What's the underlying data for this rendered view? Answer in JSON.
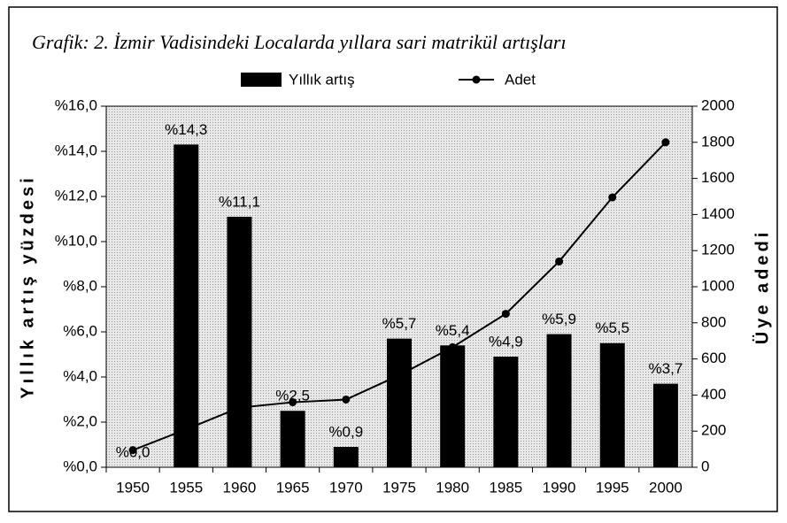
{
  "chart_data": {
    "type": "bar_line",
    "title": "Grafik: 2. İzmir Vadisindeki Localarda yıllara sari matrikül artışları",
    "ylabel": "Yıllık artış yüzdesi",
    "y2label": "Üye adedi",
    "categories": [
      "1950",
      "1955",
      "1960",
      "1965",
      "1970",
      "1975",
      "1980",
      "1985",
      "1990",
      "1995",
      "2000"
    ],
    "series": [
      {
        "name": "Yıllık artış",
        "color": "#000000",
        "type": "bar",
        "values": [
          0.0,
          14.3,
          11.1,
          2.5,
          0.9,
          5.7,
          5.4,
          4.9,
          5.9,
          5.5,
          3.7
        ],
        "value_labels": [
          "%0,0",
          "%14,3",
          "%11,1",
          "%2,5",
          "%0,9",
          "%5,7",
          "%5,4",
          "%4,9",
          "%5,9",
          "%5,5",
          "%3,7"
        ]
      },
      {
        "name": "Adet",
        "color": "#000000",
        "type": "line",
        "axis": "y2",
        "values": [
          95,
          210,
          330,
          360,
          375,
          510,
          665,
          850,
          1140,
          1495,
          1800
        ]
      }
    ],
    "ylim": [
      0,
      16
    ],
    "yticks": [
      {
        "value": 0,
        "label": "%0,0"
      },
      {
        "value": 2,
        "label": "%2,0"
      },
      {
        "value": 4,
        "label": "%4,0"
      },
      {
        "value": 6,
        "label": "%6,0"
      },
      {
        "value": 8,
        "label": "%8,0"
      },
      {
        "value": 10,
        "label": "%10,0"
      },
      {
        "value": 12,
        "label": "%12,0"
      },
      {
        "value": 14,
        "label": "%14,0"
      },
      {
        "value": 16,
        "label": "%16,0"
      }
    ],
    "y2lim": [
      0,
      2000
    ],
    "y2ticks": [
      0,
      200,
      400,
      600,
      800,
      1000,
      1200,
      1400,
      1600,
      1800,
      2000
    ],
    "legend": "top"
  }
}
